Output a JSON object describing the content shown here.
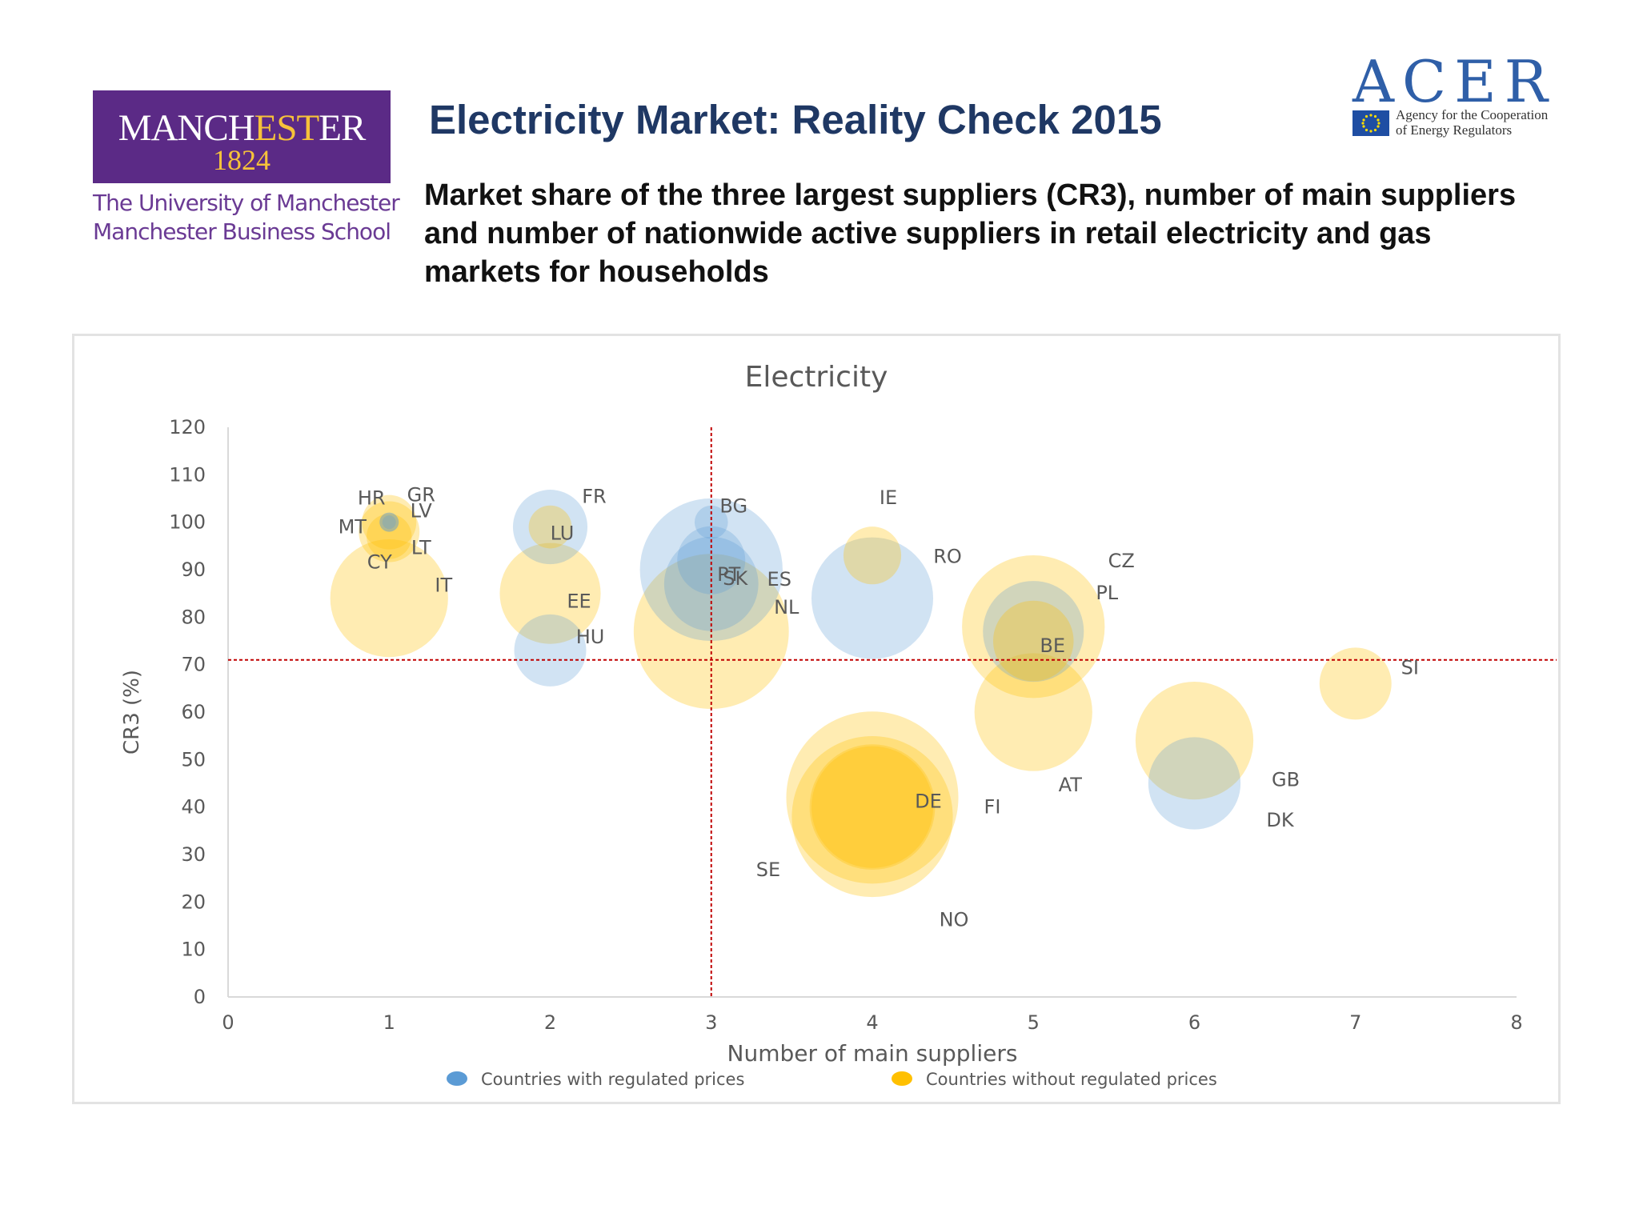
{
  "header": {
    "title": "Electricity Market: Reality Check 2015",
    "subtitle": "Market share of the three largest suppliers (CR3), number of main suppliers and number of nationwide active suppliers in retail electricity and gas markets for households"
  },
  "logos": {
    "manchester": {
      "name_part1": "MANCH",
      "name_part2": "EST",
      "name_part3": "ER",
      "year": "1824",
      "line1": "The University of Manchester",
      "line2": "Manchester Business School"
    },
    "acer": {
      "wordmark": "ACER",
      "tagline1": "Agency for the Cooperation",
      "tagline2": "of Energy Regulators"
    }
  },
  "colors": {
    "regulated": "#5b9bd5",
    "unregulated": "#ffc000",
    "reference_line": "#c00000",
    "axis": "#d9d9d9",
    "text": "#595959"
  },
  "chart_data": {
    "type": "scatter",
    "subtype": "bubble",
    "title": "Electricity",
    "xlabel": "Number of main suppliers",
    "ylabel": "CR3 (%)",
    "xlim": [
      0,
      8
    ],
    "ylim": [
      0,
      120
    ],
    "x_ticks": [
      "0",
      "1",
      "2",
      "3",
      "4",
      "5",
      "6",
      "7",
      "8"
    ],
    "y_ticks": [
      "0",
      "10",
      "20",
      "30",
      "40",
      "50",
      "60",
      "70",
      "80",
      "90",
      "100",
      "110",
      "120"
    ],
    "reference_lines": {
      "x": 3,
      "y": 71
    },
    "legend": {
      "position": "bottom",
      "items": [
        {
          "key": "regulated",
          "label": "Countries with regulated prices"
        },
        {
          "key": "unregulated",
          "label": "Countries without regulated prices"
        }
      ]
    },
    "series": [
      {
        "key": "regulated",
        "points": [
          {
            "label": "HR",
            "x": 1,
            "y": 100,
            "size": 2
          },
          {
            "label": "MT",
            "x": 1,
            "y": 100,
            "size": 1
          },
          {
            "label": "LV",
            "x": 1,
            "y": 100,
            "size": 2
          },
          {
            "label": "FR",
            "x": 2,
            "y": 99,
            "size": 30
          },
          {
            "label": "HU",
            "x": 2,
            "y": 73,
            "size": 28
          },
          {
            "label": "BG",
            "x": 3,
            "y": 100,
            "size": 6
          },
          {
            "label": "ES",
            "x": 3,
            "y": 90,
            "size": 110
          },
          {
            "label": "PT",
            "x": 3,
            "y": 92,
            "size": 25
          },
          {
            "label": "SK",
            "x": 3,
            "y": 87,
            "size": 48
          },
          {
            "label": "RO",
            "x": 4,
            "y": 84,
            "size": 80
          },
          {
            "label": "PL",
            "x": 5,
            "y": 77,
            "size": 55
          },
          {
            "label": "DK",
            "x": 6,
            "y": 45,
            "size": 46
          }
        ]
      },
      {
        "key": "unregulated",
        "points": [
          {
            "label": "GR",
            "x": 1,
            "y": 100,
            "size": 16
          },
          {
            "label": "LT",
            "x": 1,
            "y": 98,
            "size": 20
          },
          {
            "label": "CY",
            "x": 1,
            "y": 97,
            "size": 11
          },
          {
            "label": "IT",
            "x": 1,
            "y": 84,
            "size": 75
          },
          {
            "label": "LU",
            "x": 2,
            "y": 99,
            "size": 10
          },
          {
            "label": "EE",
            "x": 2,
            "y": 85,
            "size": 55
          },
          {
            "label": "NL",
            "x": 3,
            "y": 77,
            "size": 130
          },
          {
            "label": "IE",
            "x": 4,
            "y": 93,
            "size": 18
          },
          {
            "label": "SE",
            "x": 4,
            "y": 42,
            "size": 160
          },
          {
            "label": "NO",
            "x": 4,
            "y": 38,
            "size": 140
          },
          {
            "label": "DE",
            "x": 4,
            "y": 40,
            "size": 85
          },
          {
            "label": "FI",
            "x": 4,
            "y": 40,
            "size": 80
          },
          {
            "label": "CZ",
            "x": 5,
            "y": 78,
            "size": 110
          },
          {
            "label": "BE",
            "x": 5,
            "y": 75,
            "size": 35
          },
          {
            "label": "AT",
            "x": 5,
            "y": 60,
            "size": 75
          },
          {
            "label": "GB",
            "x": 6,
            "y": 54,
            "size": 75
          },
          {
            "label": "SI",
            "x": 7,
            "y": 66,
            "size": 28
          }
        ]
      }
    ]
  }
}
